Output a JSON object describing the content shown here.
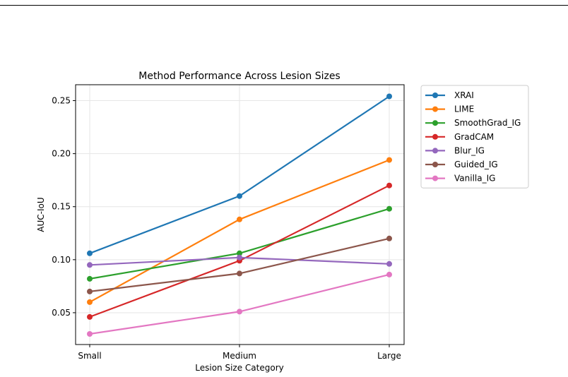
{
  "chart_data": {
    "type": "line",
    "title": "Method Performance Across Lesion Sizes",
    "xlabel": "Lesion Size Category",
    "ylabel": "AUC-IoU",
    "categories": [
      "Small",
      "Medium",
      "Large"
    ],
    "ylim": [
      0.02,
      0.265
    ],
    "yticks": [
      0.05,
      0.1,
      0.15,
      0.2,
      0.25
    ],
    "ytick_labels": [
      "0.05",
      "0.10",
      "0.15",
      "0.20",
      "0.25"
    ],
    "grid": true,
    "legend_position": "outside-right-top",
    "series": [
      {
        "name": "XRAI",
        "color": "#1f77b4",
        "values": [
          0.106,
          0.16,
          0.254
        ]
      },
      {
        "name": "LIME",
        "color": "#ff7f0e",
        "values": [
          0.06,
          0.138,
          0.194
        ]
      },
      {
        "name": "SmoothGrad_IG",
        "color": "#2ca02c",
        "values": [
          0.082,
          0.106,
          0.148
        ]
      },
      {
        "name": "GradCAM",
        "color": "#d62728",
        "values": [
          0.046,
          0.099,
          0.17
        ]
      },
      {
        "name": "Blur_IG",
        "color": "#9467bd",
        "values": [
          0.095,
          0.102,
          0.096
        ]
      },
      {
        "name": "Guided_IG",
        "color": "#8c564b",
        "values": [
          0.07,
          0.087,
          0.12
        ]
      },
      {
        "name": "Vanilla_IG",
        "color": "#e377c2",
        "values": [
          0.03,
          0.051,
          0.086
        ]
      }
    ]
  }
}
